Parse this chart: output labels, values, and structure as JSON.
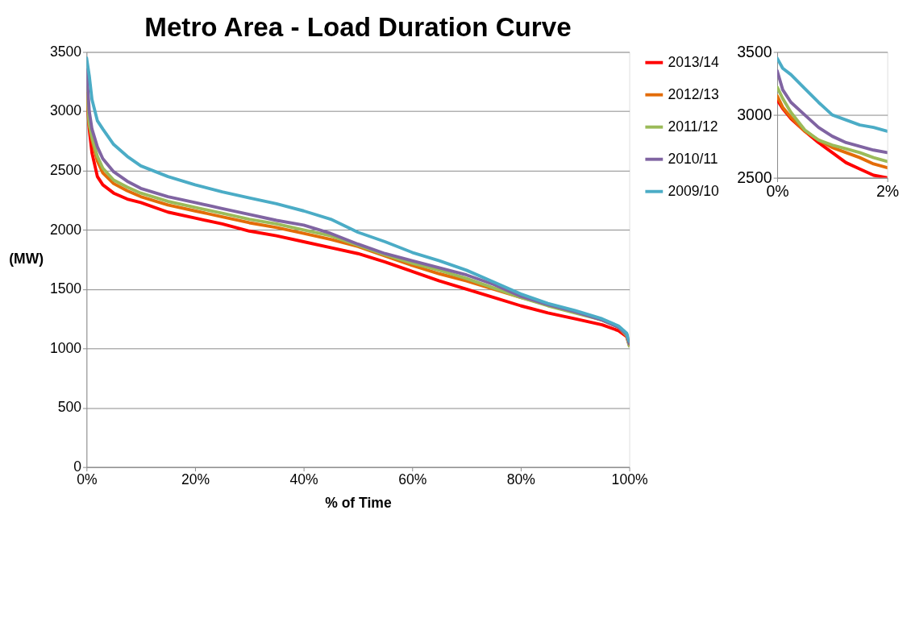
{
  "chart_data": [
    {
      "type": "line",
      "title": "Metro Area - Load Duration Curve",
      "xlabel": "% of Time",
      "ylabel": "(MW)",
      "x": [
        0,
        0.5,
        1,
        2,
        3,
        5,
        7.5,
        10,
        15,
        20,
        25,
        30,
        35,
        40,
        45,
        50,
        55,
        60,
        65,
        70,
        75,
        80,
        85,
        90,
        95,
        98,
        99.5,
        100
      ],
      "series": [
        {
          "name": "2013/14",
          "color": "#ff0000",
          "values": [
            3150,
            2850,
            2650,
            2450,
            2380,
            2310,
            2260,
            2230,
            2150,
            2100,
            2050,
            1990,
            1950,
            1900,
            1850,
            1800,
            1730,
            1650,
            1570,
            1500,
            1430,
            1360,
            1300,
            1250,
            1200,
            1150,
            1100,
            1030
          ]
        },
        {
          "name": "2012/13",
          "color": "#e36c09",
          "values": [
            3150,
            2880,
            2760,
            2580,
            2480,
            2390,
            2330,
            2280,
            2210,
            2160,
            2110,
            2060,
            2020,
            1970,
            1920,
            1860,
            1780,
            1700,
            1630,
            1570,
            1500,
            1430,
            1370,
            1310,
            1240,
            1180,
            1110,
            1030
          ]
        },
        {
          "name": "2011/12",
          "color": "#9bbb59",
          "values": [
            3200,
            2900,
            2780,
            2620,
            2520,
            2420,
            2360,
            2310,
            2240,
            2190,
            2140,
            2090,
            2050,
            2000,
            1950,
            1870,
            1790,
            1720,
            1660,
            1590,
            1510,
            1430,
            1360,
            1300,
            1240,
            1180,
            1110,
            1020
          ]
        },
        {
          "name": "2010/11",
          "color": "#8064a2",
          "values": [
            3350,
            3000,
            2850,
            2700,
            2600,
            2490,
            2410,
            2350,
            2280,
            2230,
            2180,
            2130,
            2080,
            2040,
            1970,
            1880,
            1800,
            1740,
            1680,
            1620,
            1540,
            1440,
            1370,
            1310,
            1240,
            1180,
            1120,
            1040
          ]
        },
        {
          "name": "2009/10",
          "color": "#4bacc6",
          "values": [
            3450,
            3300,
            3100,
            2920,
            2850,
            2720,
            2620,
            2540,
            2450,
            2380,
            2320,
            2270,
            2220,
            2160,
            2090,
            1980,
            1900,
            1810,
            1740,
            1660,
            1560,
            1460,
            1380,
            1320,
            1250,
            1190,
            1130,
            1060
          ]
        }
      ],
      "xlim": [
        0,
        100
      ],
      "xticks": [
        {
          "value": 0,
          "label": "0%"
        },
        {
          "value": 20,
          "label": "20%"
        },
        {
          "value": 40,
          "label": "40%"
        },
        {
          "value": 60,
          "label": "60%"
        },
        {
          "value": 80,
          "label": "80%"
        },
        {
          "value": 100,
          "label": "100%"
        }
      ],
      "ylim": [
        0,
        3500
      ],
      "yticks": [
        0,
        500,
        1000,
        1500,
        2000,
        2500,
        3000,
        3500
      ],
      "grid": "y",
      "legend": "right",
      "line_style": "solid",
      "marker": "none"
    },
    {
      "type": "line",
      "x": [
        0,
        0.1,
        0.25,
        0.5,
        0.75,
        1,
        1.25,
        1.5,
        1.75,
        2
      ],
      "series": [
        {
          "color": "#ff0000",
          "values": [
            3120,
            3050,
            2970,
            2870,
            2780,
            2700,
            2620,
            2570,
            2520,
            2500
          ]
        },
        {
          "color": "#e36c09",
          "values": [
            3150,
            3060,
            2980,
            2870,
            2800,
            2740,
            2700,
            2660,
            2610,
            2580
          ]
        },
        {
          "color": "#9bbb59",
          "values": [
            3220,
            3130,
            3020,
            2880,
            2800,
            2760,
            2730,
            2700,
            2660,
            2630
          ]
        },
        {
          "color": "#8064a2",
          "values": [
            3350,
            3200,
            3100,
            3000,
            2900,
            2830,
            2780,
            2750,
            2720,
            2700
          ]
        },
        {
          "color": "#4bacc6",
          "values": [
            3450,
            3370,
            3320,
            3210,
            3100,
            3000,
            2960,
            2920,
            2900,
            2870
          ]
        }
      ],
      "xlim": [
        0,
        2
      ],
      "xticks": [
        {
          "value": 0,
          "label": "0%"
        },
        {
          "value": 2,
          "label": "2%"
        }
      ],
      "ylim": [
        2500,
        3500
      ],
      "yticks": [
        2500,
        3000,
        3500
      ],
      "grid": "y",
      "line_style": "solid",
      "marker": "none"
    }
  ]
}
